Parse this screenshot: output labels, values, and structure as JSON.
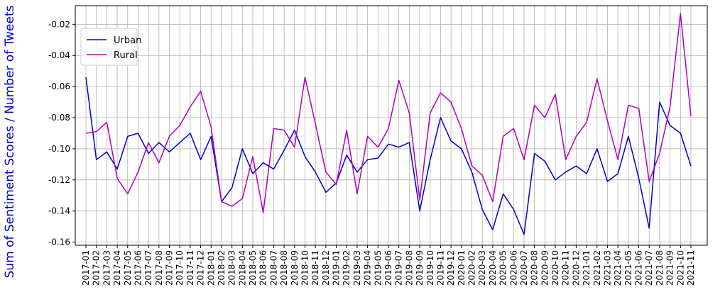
{
  "chart_data": {
    "type": "line",
    "ylabel": "Sum of Sentiment Scores / Number of Tweets",
    "xlabel": "",
    "ylim": [
      -0.162,
      -0.008
    ],
    "yticks": [
      -0.16,
      -0.14,
      -0.12,
      -0.1,
      -0.08,
      -0.06,
      -0.04,
      -0.02
    ],
    "ytick_labels": [
      "-0.16",
      "-0.14",
      "-0.12",
      "-0.10",
      "-0.08",
      "-0.06",
      "-0.04",
      "-0.02"
    ],
    "grid": true,
    "legend_position": "top-left",
    "x": [
      "2017-01",
      "2017-02",
      "2017-03",
      "2017-04",
      "2017-05",
      "2017-06",
      "2017-07",
      "2017-08",
      "2017-09",
      "2017-10",
      "2017-11",
      "2017-12",
      "2018-01",
      "2018-02",
      "2018-03",
      "2018-04",
      "2018-05",
      "2018-06",
      "2018-07",
      "2018-08",
      "2018-09",
      "2018-10",
      "2018-11",
      "2018-12",
      "2019-01",
      "2019-02",
      "2019-03",
      "2019-04",
      "2019-05",
      "2019-06",
      "2019-07",
      "2019-08",
      "2019-09",
      "2019-10",
      "2019-11",
      "2019-12",
      "2020-01",
      "2020-02",
      "2020-03",
      "2020-04",
      "2020-05",
      "2020-06",
      "2020-07",
      "2020-08",
      "2020-09",
      "2020-10",
      "2020-11",
      "2020-12",
      "2021-01",
      "2021-02",
      "2021-03",
      "2021-04",
      "2021-05",
      "2021-06",
      "2021-07",
      "2021-08",
      "2021-09",
      "2021-10",
      "2021-11"
    ],
    "series": [
      {
        "name": "Urban",
        "color": "#0000cc",
        "values": [
          -0.054,
          -0.107,
          -0.102,
          -0.113,
          -0.092,
          -0.09,
          -0.103,
          -0.096,
          -0.102,
          -0.096,
          -0.09,
          -0.107,
          -0.092,
          -0.134,
          -0.125,
          -0.1,
          -0.116,
          -0.109,
          -0.113,
          -0.101,
          -0.088,
          -0.105,
          -0.115,
          -0.128,
          -0.122,
          -0.104,
          -0.115,
          -0.107,
          -0.106,
          -0.097,
          -0.099,
          -0.096,
          -0.14,
          -0.107,
          -0.08,
          -0.095,
          -0.1,
          -0.115,
          -0.139,
          -0.152,
          -0.129,
          -0.139,
          -0.155,
          -0.103,
          -0.108,
          -0.12,
          -0.115,
          -0.111,
          -0.116,
          -0.1,
          -0.121,
          -0.116,
          -0.092,
          -0.119,
          -0.151,
          -0.07,
          -0.085,
          -0.09,
          -0.111
        ]
      },
      {
        "name": "Rural",
        "color": "#b000b5",
        "values": [
          -0.09,
          -0.089,
          -0.083,
          -0.119,
          -0.129,
          -0.115,
          -0.096,
          -0.109,
          -0.092,
          -0.085,
          -0.073,
          -0.063,
          -0.086,
          -0.134,
          -0.137,
          -0.132,
          -0.105,
          -0.141,
          -0.087,
          -0.088,
          -0.099,
          -0.054,
          -0.084,
          -0.115,
          -0.123,
          -0.088,
          -0.129,
          -0.092,
          -0.099,
          -0.087,
          -0.056,
          -0.077,
          -0.133,
          -0.077,
          -0.064,
          -0.07,
          -0.087,
          -0.111,
          -0.117,
          -0.134,
          -0.092,
          -0.087,
          -0.107,
          -0.072,
          -0.08,
          -0.065,
          -0.107,
          -0.092,
          -0.083,
          -0.055,
          -0.082,
          -0.107,
          -0.072,
          -0.074,
          -0.121,
          -0.103,
          -0.073,
          -0.013,
          -0.079
        ]
      }
    ]
  }
}
